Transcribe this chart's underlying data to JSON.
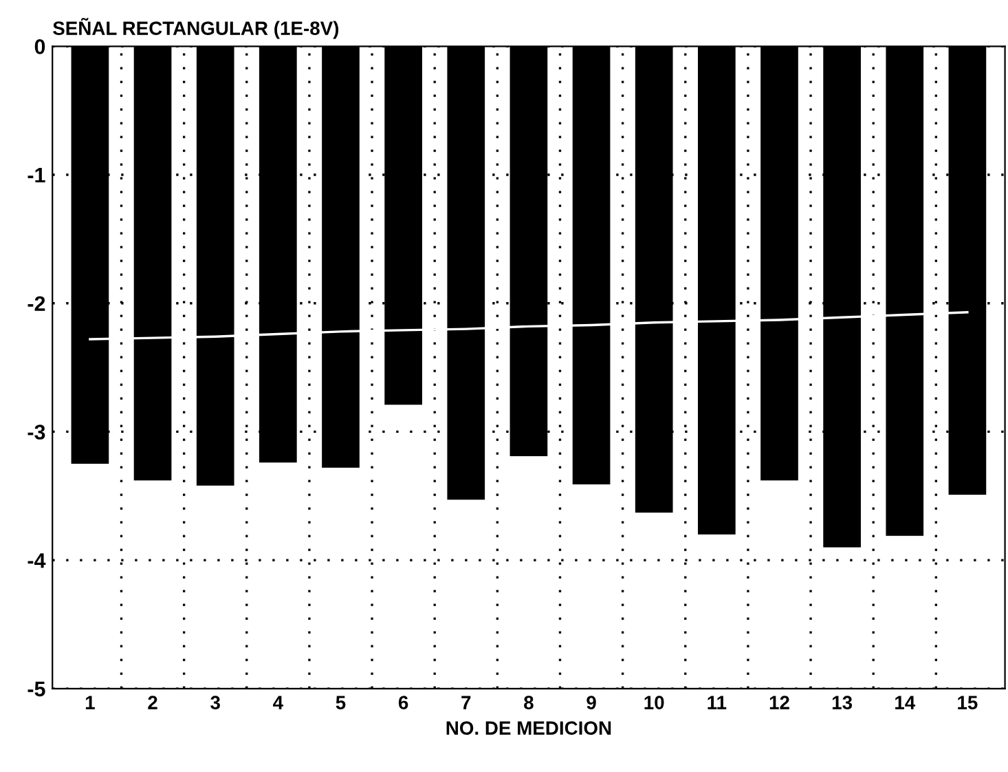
{
  "chart_data": {
    "type": "bar",
    "title": "SEÑAL RECTANGULAR (1E-8V)",
    "xlabel": "NO. DE MEDICION",
    "categories": [
      "1",
      "2",
      "3",
      "4",
      "5",
      "6",
      "7",
      "8",
      "9",
      "10",
      "11",
      "12",
      "13",
      "14",
      "15"
    ],
    "series": [
      {
        "color": "#000000",
        "values": [
          -3.25,
          -3.38,
          -3.42,
          -3.24,
          -3.28,
          -2.79,
          -3.53,
          -3.19,
          -3.41,
          -3.63,
          -3.8,
          -3.38,
          -3.9,
          -3.81,
          -3.49
        ]
      },
      {
        "type": "line",
        "color": "#ffffff",
        "values": [
          -2.28,
          -2.27,
          -2.26,
          -2.24,
          -2.22,
          -2.21,
          -2.2,
          -2.18,
          -2.17,
          -2.15,
          -2.14,
          -2.13,
          -2.11,
          -2.09,
          -2.07
        ]
      }
    ],
    "ylim": [
      -5,
      0
    ],
    "yticks": [
      -5,
      -4,
      -3,
      -2,
      -1,
      0
    ],
    "grid": true,
    "legend": false
  }
}
